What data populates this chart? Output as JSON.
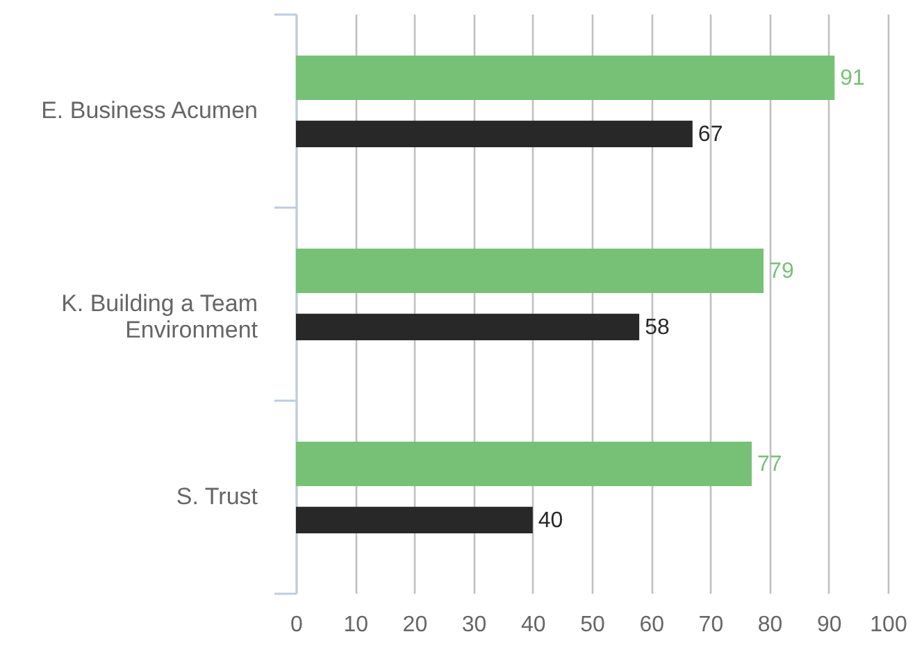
{
  "chart_data": {
    "type": "bar",
    "orientation": "horizontal",
    "categories": [
      "E. Business Acumen",
      "K. Building a Team Environment",
      "S. Trust"
    ],
    "series": [
      {
        "color": "#77c177",
        "values": [
          91,
          79,
          77
        ]
      },
      {
        "color": "#282828",
        "values": [
          67,
          58,
          40
        ]
      }
    ],
    "xlim": [
      0,
      100
    ],
    "xticks": [
      0,
      10,
      20,
      30,
      40,
      50,
      60,
      70,
      80,
      90,
      100
    ],
    "grid": "x",
    "data_labels": true
  }
}
